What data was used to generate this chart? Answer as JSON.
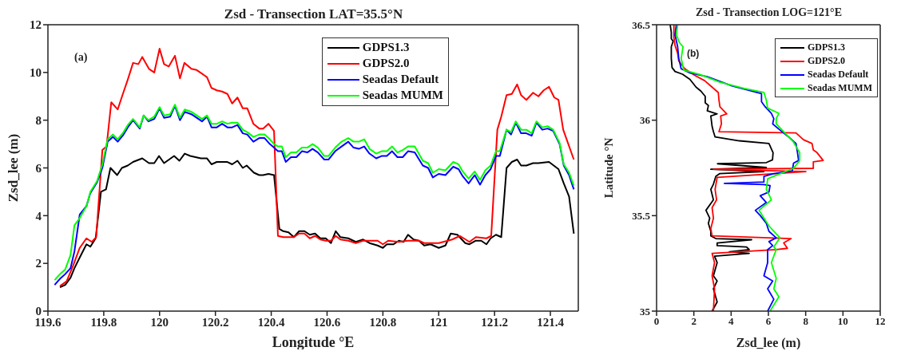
{
  "chart_data": [
    {
      "type": "line",
      "title": "Zsd - Transection LAT=35.5°N",
      "xlabel": "Longitude °E",
      "ylabel": "Zsd_lee (m)",
      "xlim": [
        119.6,
        121.5
      ],
      "xticks": [
        119.6,
        119.8,
        120,
        120.2,
        120.4,
        120.6,
        120.8,
        121,
        121.2,
        121.4
      ],
      "ylim": [
        0,
        12
      ],
      "yticks": [
        0,
        2,
        4,
        6,
        8,
        10,
        12
      ],
      "legend": "top right",
      "annotations": [
        "(a)"
      ],
      "series": [
        {
          "name": "GDPS1.3",
          "color": "#000000",
          "x": [
            119.643,
            119.662,
            119.681,
            119.695,
            119.714,
            119.738,
            119.752,
            119.771,
            119.79,
            119.808,
            119.824,
            119.848,
            119.865,
            119.886,
            119.905,
            119.938,
            119.962,
            119.981,
            119.998,
            120.016,
            120.052,
            120.071,
            120.09,
            120.11,
            120.148,
            120.17,
            120.186,
            120.205,
            120.243,
            120.26,
            120.279,
            120.298,
            120.312,
            120.338,
            120.357,
            120.371,
            120.39,
            120.41,
            120.429,
            120.443,
            120.462,
            120.481,
            120.5,
            120.519,
            120.538,
            120.557,
            120.576,
            120.595,
            120.614,
            120.631,
            120.648,
            120.676,
            120.703,
            120.729,
            120.752,
            120.781,
            120.8,
            120.814,
            120.838,
            120.857,
            120.874,
            120.89,
            120.91,
            120.929,
            120.948,
            120.971,
            121.0,
            121.024,
            121.043,
            121.067,
            121.095,
            121.11,
            121.133,
            121.152,
            121.171,
            121.186,
            121.205,
            121.224,
            121.243,
            121.262,
            121.281,
            121.295,
            121.314,
            121.338,
            121.357,
            121.395,
            121.429,
            121.448,
            121.467,
            121.484
          ],
          "values": [
            1.0,
            1.1,
            1.4,
            1.8,
            2.25,
            2.8,
            2.7,
            3.05,
            5.0,
            5.1,
            6.0,
            5.7,
            6.0,
            6.1,
            6.25,
            6.4,
            6.2,
            6.2,
            6.5,
            6.2,
            6.5,
            6.3,
            6.6,
            6.5,
            6.4,
            6.4,
            6.15,
            6.25,
            6.25,
            6.15,
            6.3,
            6.0,
            6.1,
            5.8,
            5.7,
            5.7,
            5.75,
            5.7,
            3.45,
            3.35,
            3.3,
            3.1,
            3.35,
            3.35,
            3.2,
            3.25,
            3.05,
            3.05,
            2.85,
            3.35,
            3.1,
            3.05,
            2.9,
            3.0,
            2.85,
            2.75,
            2.65,
            2.8,
            2.8,
            2.95,
            2.9,
            3.2,
            3.0,
            2.95,
            2.75,
            2.8,
            2.65,
            2.75,
            3.25,
            3.2,
            2.85,
            2.8,
            2.95,
            2.95,
            2.8,
            3.05,
            3.2,
            3.1,
            6.0,
            6.25,
            6.35,
            6.1,
            6.1,
            6.2,
            6.2,
            6.25,
            5.95,
            5.35,
            4.8,
            3.25
          ]
        },
        {
          "name": "GDPS2.0",
          "color": "#ff0000",
          "x": [
            119.643,
            119.667,
            119.69,
            119.714,
            119.738,
            119.757,
            119.773,
            119.795,
            119.81,
            119.827,
            119.85,
            119.867,
            119.886,
            119.905,
            119.924,
            119.938,
            119.962,
            119.981,
            120.0,
            120.016,
            120.033,
            120.055,
            120.073,
            120.089,
            120.114,
            120.133,
            120.152,
            120.17,
            120.186,
            120.205,
            120.224,
            120.243,
            120.26,
            120.279,
            120.298,
            120.314,
            120.336,
            120.357,
            120.371,
            120.39,
            120.41,
            120.424,
            120.443,
            120.462,
            120.481,
            120.5,
            120.519,
            120.538,
            120.557,
            120.576,
            120.595,
            120.614,
            120.631,
            120.648,
            120.676,
            120.703,
            120.729,
            120.781,
            120.8,
            120.819,
            120.857,
            120.89,
            120.929,
            120.948,
            121.0,
            121.048,
            121.076,
            121.11,
            121.133,
            121.171,
            121.188,
            121.21,
            121.224,
            121.243,
            121.262,
            121.281,
            121.295,
            121.314,
            121.338,
            121.357,
            121.376,
            121.395,
            121.414,
            121.429,
            121.446,
            121.484
          ],
          "values": [
            1.05,
            1.25,
            1.9,
            2.65,
            3.05,
            2.9,
            3.1,
            6.75,
            6.9,
            8.75,
            8.45,
            9.05,
            9.7,
            10.4,
            10.35,
            10.65,
            10.15,
            10.0,
            11.0,
            10.35,
            10.25,
            10.7,
            9.75,
            10.4,
            10.15,
            10.1,
            9.95,
            9.8,
            9.35,
            9.25,
            9.2,
            9.1,
            8.7,
            8.95,
            8.5,
            8.5,
            7.85,
            7.65,
            7.65,
            7.85,
            7.55,
            3.15,
            3.1,
            3.1,
            3.1,
            3.25,
            3.25,
            3.05,
            3.15,
            3.0,
            2.95,
            2.95,
            3.15,
            3.0,
            2.95,
            2.85,
            2.95,
            2.95,
            2.8,
            2.95,
            2.9,
            2.95,
            2.95,
            2.85,
            2.85,
            3.0,
            3.15,
            2.9,
            3.1,
            3.05,
            3.15,
            7.6,
            8.15,
            9.05,
            9.1,
            9.5,
            9.05,
            8.85,
            9.15,
            9.0,
            9.25,
            9.4,
            8.95,
            8.85,
            7.6,
            6.35
          ]
        },
        {
          "name": "Seadas Default",
          "color": "#0000ff",
          "x": [
            119.624,
            119.643,
            119.662,
            119.681,
            119.695,
            119.714,
            119.738,
            119.752,
            119.776,
            119.795,
            119.814,
            119.833,
            119.85,
            119.871,
            119.886,
            119.905,
            119.929,
            119.943,
            119.96,
            119.981,
            120.0,
            120.016,
            120.038,
            120.055,
            120.073,
            120.09,
            120.114,
            120.133,
            120.152,
            120.17,
            120.186,
            120.205,
            120.224,
            120.243,
            120.26,
            120.279,
            120.298,
            120.314,
            120.336,
            120.357,
            120.376,
            120.395,
            120.41,
            120.424,
            120.438,
            120.452,
            120.471,
            120.49,
            120.51,
            120.529,
            120.548,
            120.567,
            120.59,
            120.605,
            120.629,
            120.652,
            120.676,
            120.695,
            120.714,
            120.733,
            120.752,
            120.776,
            120.795,
            120.814,
            120.833,
            120.852,
            120.871,
            120.89,
            120.914,
            120.943,
            120.962,
            120.979,
            121.0,
            121.024,
            121.052,
            121.071,
            121.086,
            121.107,
            121.129,
            121.148,
            121.167,
            121.186,
            121.205,
            121.219,
            121.243,
            121.259,
            121.276,
            121.295,
            121.314,
            121.333,
            121.35,
            121.371,
            121.39,
            121.41,
            121.433,
            121.448,
            121.467,
            121.484
          ],
          "values": [
            1.1,
            1.35,
            1.55,
            1.8,
            2.5,
            4.05,
            4.4,
            4.95,
            5.4,
            6.0,
            7.1,
            7.3,
            7.1,
            7.4,
            7.7,
            8.0,
            7.65,
            8.2,
            7.95,
            8.05,
            8.5,
            8.1,
            8.15,
            8.6,
            8.0,
            8.35,
            8.25,
            8.1,
            7.95,
            8.15,
            7.7,
            7.7,
            7.85,
            7.7,
            7.7,
            7.8,
            7.45,
            7.4,
            7.1,
            7.25,
            7.25,
            7.0,
            6.85,
            6.7,
            6.7,
            6.25,
            6.45,
            6.45,
            6.7,
            6.65,
            6.8,
            6.65,
            6.35,
            6.35,
            6.7,
            6.9,
            7.1,
            6.85,
            6.8,
            6.9,
            6.6,
            6.4,
            6.5,
            6.5,
            6.7,
            6.45,
            6.45,
            6.7,
            6.65,
            6.1,
            6.0,
            5.6,
            5.75,
            5.7,
            6.05,
            5.95,
            5.65,
            5.35,
            5.7,
            5.3,
            5.7,
            5.95,
            6.5,
            6.5,
            7.6,
            7.4,
            7.9,
            7.45,
            7.45,
            7.35,
            7.9,
            7.6,
            7.65,
            7.55,
            7.0,
            6.1,
            5.7,
            5.1
          ]
        },
        {
          "name": "Seadas MUMM",
          "color": "#00ff00",
          "x": [
            119.624,
            119.643,
            119.662,
            119.681,
            119.695,
            119.714,
            119.738,
            119.752,
            119.776,
            119.795,
            119.814,
            119.833,
            119.85,
            119.871,
            119.886,
            119.905,
            119.929,
            119.943,
            119.96,
            119.981,
            120.0,
            120.016,
            120.038,
            120.055,
            120.073,
            120.09,
            120.114,
            120.133,
            120.152,
            120.17,
            120.186,
            120.205,
            120.224,
            120.243,
            120.26,
            120.279,
            120.298,
            120.314,
            120.336,
            120.357,
            120.376,
            120.395,
            120.41,
            120.424,
            120.438,
            120.452,
            120.471,
            120.49,
            120.51,
            120.529,
            120.548,
            120.567,
            120.59,
            120.605,
            120.629,
            120.652,
            120.676,
            120.695,
            120.714,
            120.733,
            120.752,
            120.776,
            120.795,
            120.814,
            120.833,
            120.852,
            120.871,
            120.89,
            120.914,
            120.943,
            120.962,
            120.979,
            121.0,
            121.024,
            121.052,
            121.071,
            121.086,
            121.107,
            121.129,
            121.148,
            121.167,
            121.186,
            121.205,
            121.219,
            121.243,
            121.259,
            121.276,
            121.295,
            121.314,
            121.333,
            121.35,
            121.371,
            121.39,
            121.41,
            121.433,
            121.448,
            121.467,
            121.484
          ],
          "values": [
            1.3,
            1.55,
            1.75,
            2.35,
            3.6,
            3.9,
            4.4,
            5.0,
            5.45,
            6.15,
            7.2,
            7.4,
            7.2,
            7.5,
            7.8,
            8.05,
            7.7,
            8.2,
            8.0,
            8.15,
            8.55,
            8.2,
            8.25,
            8.65,
            8.1,
            8.45,
            8.35,
            8.2,
            8.05,
            8.2,
            7.85,
            7.85,
            7.95,
            7.85,
            7.9,
            7.9,
            7.6,
            7.5,
            7.3,
            7.4,
            7.4,
            7.2,
            7.0,
            6.9,
            6.9,
            6.45,
            6.65,
            6.65,
            6.85,
            6.85,
            7.0,
            6.85,
            6.5,
            6.5,
            6.85,
            7.1,
            7.25,
            7.1,
            7.1,
            7.2,
            6.8,
            6.6,
            6.7,
            6.7,
            6.9,
            6.65,
            6.75,
            6.9,
            6.9,
            6.3,
            6.2,
            5.8,
            5.95,
            5.9,
            6.25,
            6.15,
            5.85,
            5.55,
            5.85,
            5.5,
            5.9,
            6.1,
            6.7,
            6.7,
            7.6,
            7.5,
            7.95,
            7.6,
            7.6,
            7.45,
            7.95,
            7.7,
            7.75,
            7.6,
            7.05,
            6.15,
            5.8,
            5.25
          ]
        }
      ]
    },
    {
      "type": "line",
      "title": "Zsd - Transection LOG=121°E",
      "xlabel": "Zsd_lee (m)",
      "ylabel": "Latitude °N",
      "xlim": [
        0,
        12
      ],
      "xticks": [
        0,
        2,
        4,
        6,
        8,
        10,
        12
      ],
      "ylim": [
        35,
        36.5
      ],
      "yticks": [
        35,
        35.5,
        36,
        36.5
      ],
      "legend": "top right",
      "annotations": [
        "(b)"
      ],
      "series": [
        {
          "name": "GDPS1.3",
          "color": "#000000",
          "x": [
            0.73,
            0.79,
            0.79,
            0.89,
            0.79,
            0.79,
            0.83,
            0.99,
            1.39,
            1.79,
            2.12,
            2.38,
            2.61,
            2.61,
            2.78,
            2.72,
            3.25,
            2.91,
            2.98,
            3.05,
            3.14,
            4.44,
            6.03,
            6.25,
            6.22,
            5.89,
            3.27,
            5.89,
            2.91,
            5.76,
            3.38,
            3.18,
            3.05,
            2.91,
            3.05,
            2.65,
            2.85,
            2.78,
            2.91,
            2.91,
            3.18,
            5.1,
            3.25,
            3.25,
            4.83,
            4.97,
            3.91,
            4.97,
            3.11,
            3.25,
            3.05,
            3.25,
            3.05,
            3.25,
            2.98
          ],
          "values": [
            36.5,
            36.461,
            36.427,
            36.413,
            36.385,
            36.324,
            36.276,
            36.255,
            36.241,
            36.214,
            36.173,
            36.152,
            36.125,
            36.091,
            36.077,
            36.049,
            36.033,
            36.022,
            35.967,
            35.94,
            35.912,
            35.892,
            35.878,
            35.83,
            35.792,
            35.778,
            35.772,
            35.752,
            35.743,
            35.731,
            35.72,
            35.706,
            35.665,
            35.638,
            35.583,
            35.528,
            35.487,
            35.46,
            35.418,
            35.394,
            35.38,
            35.374,
            35.357,
            35.343,
            35.336,
            35.322,
            35.311,
            35.302,
            35.288,
            35.254,
            35.185,
            35.158,
            35.117,
            35.048,
            35.0
          ]
        },
        {
          "name": "GDPS2.0",
          "color": "#ff0000",
          "x": [
            0.93,
            0.93,
            0.99,
            1.13,
            1.19,
            1.52,
            2.05,
            2.58,
            2.98,
            3.31,
            3.35,
            3.4,
            3.77,
            3.44,
            3.48,
            3.35,
            7.48,
            7.88,
            8.34,
            8.41,
            8.61,
            8.94,
            8.41,
            8.41,
            3.05,
            8.01,
            3.25,
            3.14,
            3.22,
            2.98,
            3.05,
            2.91,
            2.98,
            7.22,
            6.82,
            7.02,
            6.42,
            2.98,
            3.11,
            2.98,
            3.11,
            3.05
          ],
          "values": [
            36.5,
            36.433,
            36.392,
            36.351,
            36.31,
            36.269,
            36.235,
            36.207,
            36.173,
            36.145,
            36.104,
            36.07,
            36.033,
            36.022,
            35.981,
            35.94,
            35.933,
            35.898,
            35.878,
            35.844,
            35.83,
            35.789,
            35.782,
            35.748,
            35.743,
            35.731,
            35.7,
            35.638,
            35.583,
            35.542,
            35.487,
            35.432,
            35.394,
            35.38,
            35.357,
            35.329,
            35.322,
            35.302,
            35.254,
            35.185,
            35.117,
            35.0
          ]
        },
        {
          "name": "Seadas Default",
          "color": "#0000ff",
          "x": [
            1.06,
            0.99,
            1.13,
            1.19,
            1.32,
            1.79,
            2.72,
            4.04,
            5.63,
            5.63,
            5.83,
            6.16,
            6.29,
            6.23,
            6.56,
            7.09,
            7.48,
            7.55,
            7.62,
            7.35,
            7.28,
            6.29,
            5.76,
            5.76,
            3.64,
            5.76,
            6.09,
            6.03,
            5.56,
            5.89,
            5.3,
            5.56,
            5.89,
            6.03,
            6.42,
            6.03,
            6.23,
            5.96,
            5.96,
            5.76,
            6.23,
            5.96,
            6.29,
            5.96
          ],
          "values": [
            36.5,
            36.447,
            36.385,
            36.324,
            36.269,
            36.248,
            36.228,
            36.18,
            36.139,
            36.097,
            36.07,
            36.036,
            36.008,
            35.981,
            35.953,
            35.912,
            35.878,
            35.837,
            35.789,
            35.775,
            35.734,
            35.72,
            35.706,
            35.676,
            35.669,
            35.663,
            35.658,
            35.624,
            35.604,
            35.569,
            35.528,
            35.501,
            35.46,
            35.418,
            35.384,
            35.364,
            35.343,
            35.322,
            35.254,
            35.185,
            35.158,
            35.117,
            35.062,
            35.0
          ]
        },
        {
          "name": "Seadas MUMM",
          "color": "#00ff00",
          "x": [
            1.13,
            1.06,
            1.23,
            1.42,
            1.32,
            1.46,
            2.32,
            3.38,
            4.7,
            5.76,
            5.89,
            5.96,
            6.56,
            6.42,
            6.42,
            6.82,
            7.35,
            7.68,
            7.68,
            7.35,
            5.96,
            5.89,
            6.16,
            5.5,
            6.03,
            6.62,
            6.29,
            6.42,
            6.16,
            6.42,
            6.29,
            6.56,
            6.09
          ],
          "values": [
            36.5,
            36.447,
            36.406,
            36.385,
            36.324,
            36.262,
            36.239,
            36.2,
            36.166,
            36.145,
            36.104,
            36.063,
            36.036,
            36.008,
            35.981,
            35.94,
            35.885,
            35.83,
            35.789,
            35.748,
            35.693,
            35.638,
            35.583,
            35.528,
            35.446,
            35.384,
            35.336,
            35.322,
            35.254,
            35.171,
            35.117,
            35.075,
            35.0
          ]
        }
      ]
    }
  ]
}
